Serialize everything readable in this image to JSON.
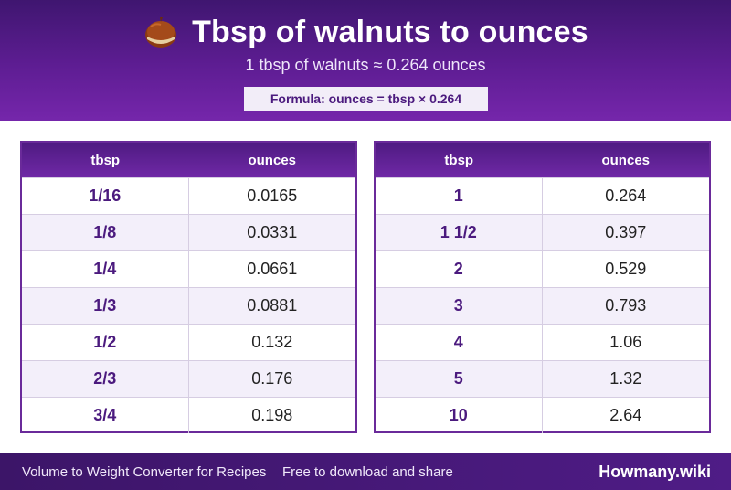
{
  "header": {
    "title": "Tbsp of walnuts to ounces",
    "icon": "walnut-icon",
    "subtitle": "1 tbsp of walnuts ≈ 0.264 ounces",
    "formula": "Formula: ounces = tbsp × 0.264",
    "colors": {
      "primary": "#5e1d93",
      "dark": "#3f1670",
      "accent_text": "#4b1a7e"
    }
  },
  "tables": [
    {
      "col_tbsp": "tbsp",
      "col_oz": "ounces",
      "rows": [
        {
          "tbsp": "1/16",
          "oz": "0.0165"
        },
        {
          "tbsp": "1/8",
          "oz": "0.0331"
        },
        {
          "tbsp": "1/4",
          "oz": "0.0661"
        },
        {
          "tbsp": "1/3",
          "oz": "0.0881"
        },
        {
          "tbsp": "1/2",
          "oz": "0.132"
        },
        {
          "tbsp": "2/3",
          "oz": "0.176"
        },
        {
          "tbsp": "3/4",
          "oz": "0.198"
        }
      ]
    },
    {
      "col_tbsp": "tbsp",
      "col_oz": "ounces",
      "rows": [
        {
          "tbsp": "1",
          "oz": "0.264"
        },
        {
          "tbsp": "1 1/2",
          "oz": "0.397"
        },
        {
          "tbsp": "2",
          "oz": "0.529"
        },
        {
          "tbsp": "3",
          "oz": "0.793"
        },
        {
          "tbsp": "4",
          "oz": "1.06"
        },
        {
          "tbsp": "5",
          "oz": "1.32"
        },
        {
          "tbsp": "10",
          "oz": "2.64"
        }
      ]
    }
  ],
  "footer": {
    "left_text": "Volume to Weight Converter for Recipes",
    "middle_text": "Free to download and share",
    "brand": "Howmany.wiki"
  }
}
